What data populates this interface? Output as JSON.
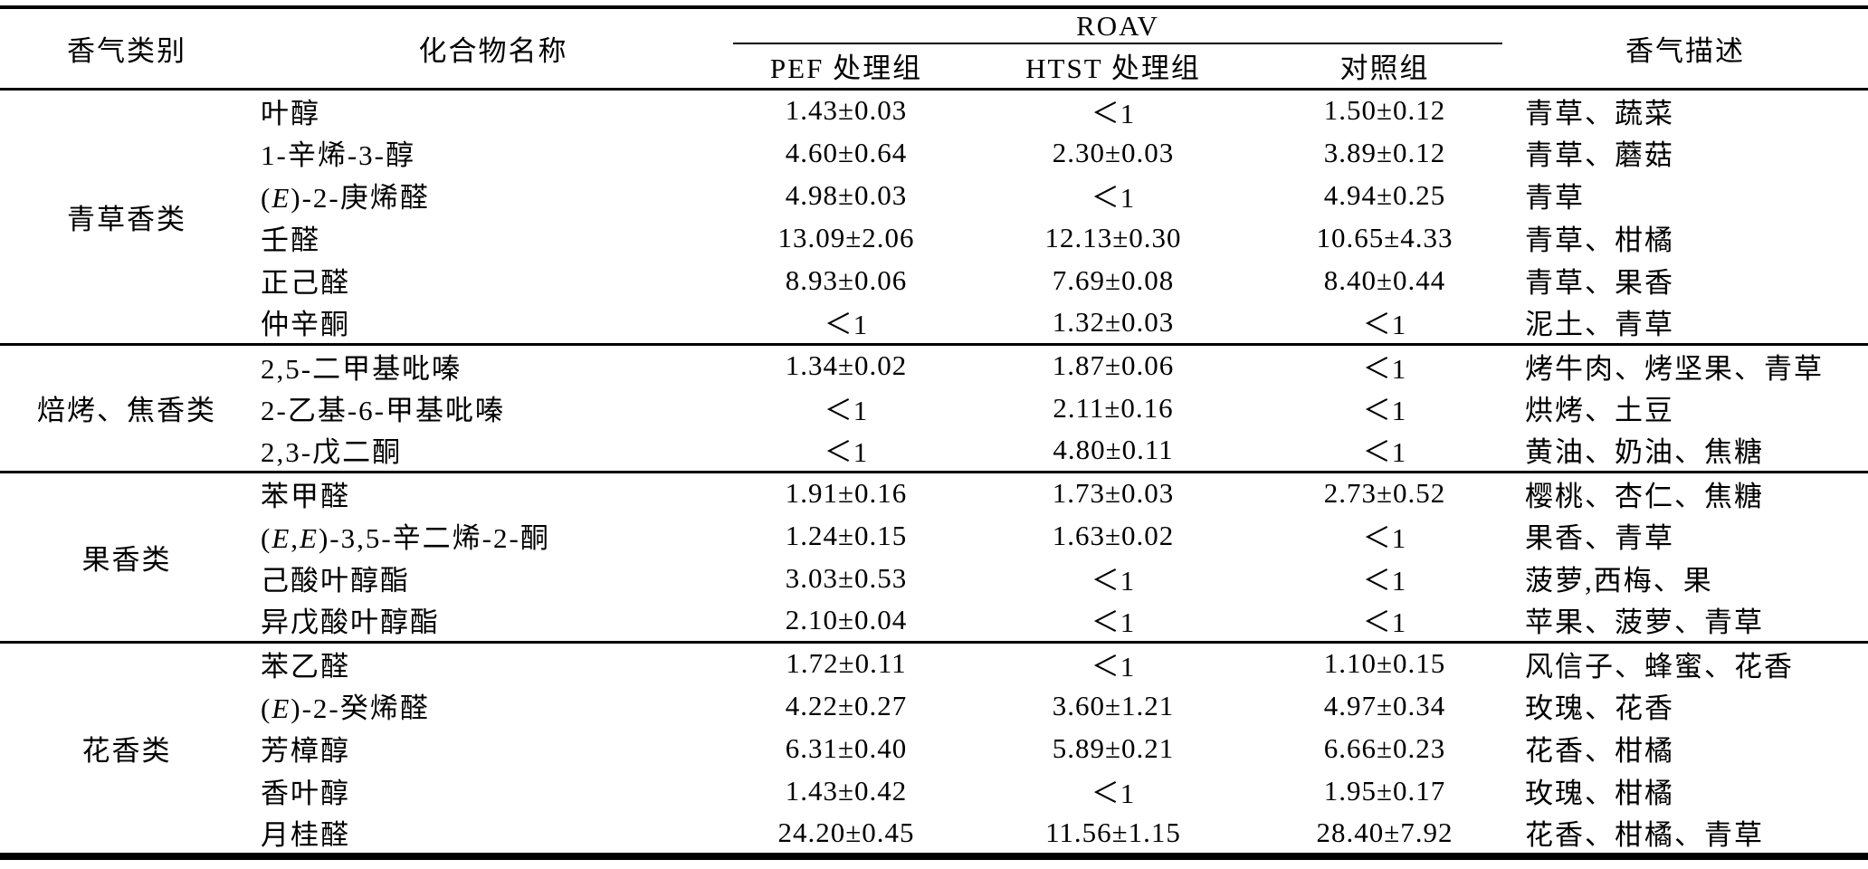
{
  "table": {
    "header": {
      "category": "香气类别",
      "compound": "化合物名称",
      "roav": "ROAV",
      "pef": "PEF 处理组",
      "htst": "HTST 处理组",
      "control": "对照组",
      "description": "香气描述"
    },
    "groups": [
      {
        "category": "青草香类",
        "rows": [
          {
            "compound": "叶醇",
            "pef": "1.43±0.03",
            "htst": "＜1",
            "control": "1.50±0.12",
            "description": "青草、蔬菜"
          },
          {
            "compound": "1-辛烯-3-醇",
            "pef": "4.60±0.64",
            "htst": "2.30±0.03",
            "control": "3.89±0.12",
            "description": "青草、蘑菇"
          },
          {
            "compound": "(E)-2-庚烯醛",
            "pef": "4.98±0.03",
            "htst": "＜1",
            "control": "4.94±0.25",
            "description": "青草"
          },
          {
            "compound": "壬醛",
            "pef": "13.09±2.06",
            "htst": "12.13±0.30",
            "control": "10.65±4.33",
            "description": "青草、柑橘"
          },
          {
            "compound": "正己醛",
            "pef": "8.93±0.06",
            "htst": "7.69±0.08",
            "control": "8.40±0.44",
            "description": "青草、果香"
          },
          {
            "compound": "仲辛酮",
            "pef": "＜1",
            "htst": "1.32±0.03",
            "control": "＜1",
            "description": "泥土、青草"
          }
        ]
      },
      {
        "category": "焙烤、焦香类",
        "rows": [
          {
            "compound": "2,5-二甲基吡嗪",
            "pef": "1.34±0.02",
            "htst": "1.87±0.06",
            "control": "＜1",
            "description": "烤牛肉、烤坚果、青草"
          },
          {
            "compound": "2-乙基-6-甲基吡嗪",
            "pef": "＜1",
            "htst": "2.11±0.16",
            "control": "＜1",
            "description": "烘烤、土豆"
          },
          {
            "compound": "2,3-戊二酮",
            "pef": "＜1",
            "htst": "4.80±0.11",
            "control": "＜1",
            "description": "黄油、奶油、焦糖"
          }
        ]
      },
      {
        "category": "果香类",
        "rows": [
          {
            "compound": "苯甲醛",
            "pef": "1.91±0.16",
            "htst": "1.73±0.03",
            "control": "2.73±0.52",
            "description": "樱桃、杏仁、焦糖"
          },
          {
            "compound": "(E,E)-3,5-辛二烯-2-酮",
            "pef": "1.24±0.15",
            "htst": "1.63±0.02",
            "control": "＜1",
            "description": "果香、青草"
          },
          {
            "compound": "己酸叶醇酯",
            "pef": "3.03±0.53",
            "htst": "＜1",
            "control": "＜1",
            "description": "菠萝,西梅、果"
          },
          {
            "compound": "异戊酸叶醇酯",
            "pef": "2.10±0.04",
            "htst": "＜1",
            "control": "＜1",
            "description": "苹果、菠萝、青草"
          }
        ]
      },
      {
        "category": "花香类",
        "rows": [
          {
            "compound": "苯乙醛",
            "pef": "1.72±0.11",
            "htst": "＜1",
            "control": "1.10±0.15",
            "description": "风信子、蜂蜜、花香"
          },
          {
            "compound": "(E)-2-癸烯醛",
            "pef": "4.22±0.27",
            "htst": "3.60±1.21",
            "control": "4.97±0.34",
            "description": "玫瑰、花香"
          },
          {
            "compound": "芳樟醇",
            "pef": "6.31±0.40",
            "htst": "5.89±0.21",
            "control": "6.66±0.23",
            "description": "花香、柑橘"
          },
          {
            "compound": "香叶醇",
            "pef": "1.43±0.42",
            "htst": "＜1",
            "control": "1.95±0.17",
            "description": "玫瑰、柑橘"
          },
          {
            "compound": "月桂醛",
            "pef": "24.20±0.45",
            "htst": "11.56±1.15",
            "control": "28.40±7.92",
            "description": "花香、柑橘、青草"
          }
        ]
      }
    ]
  }
}
